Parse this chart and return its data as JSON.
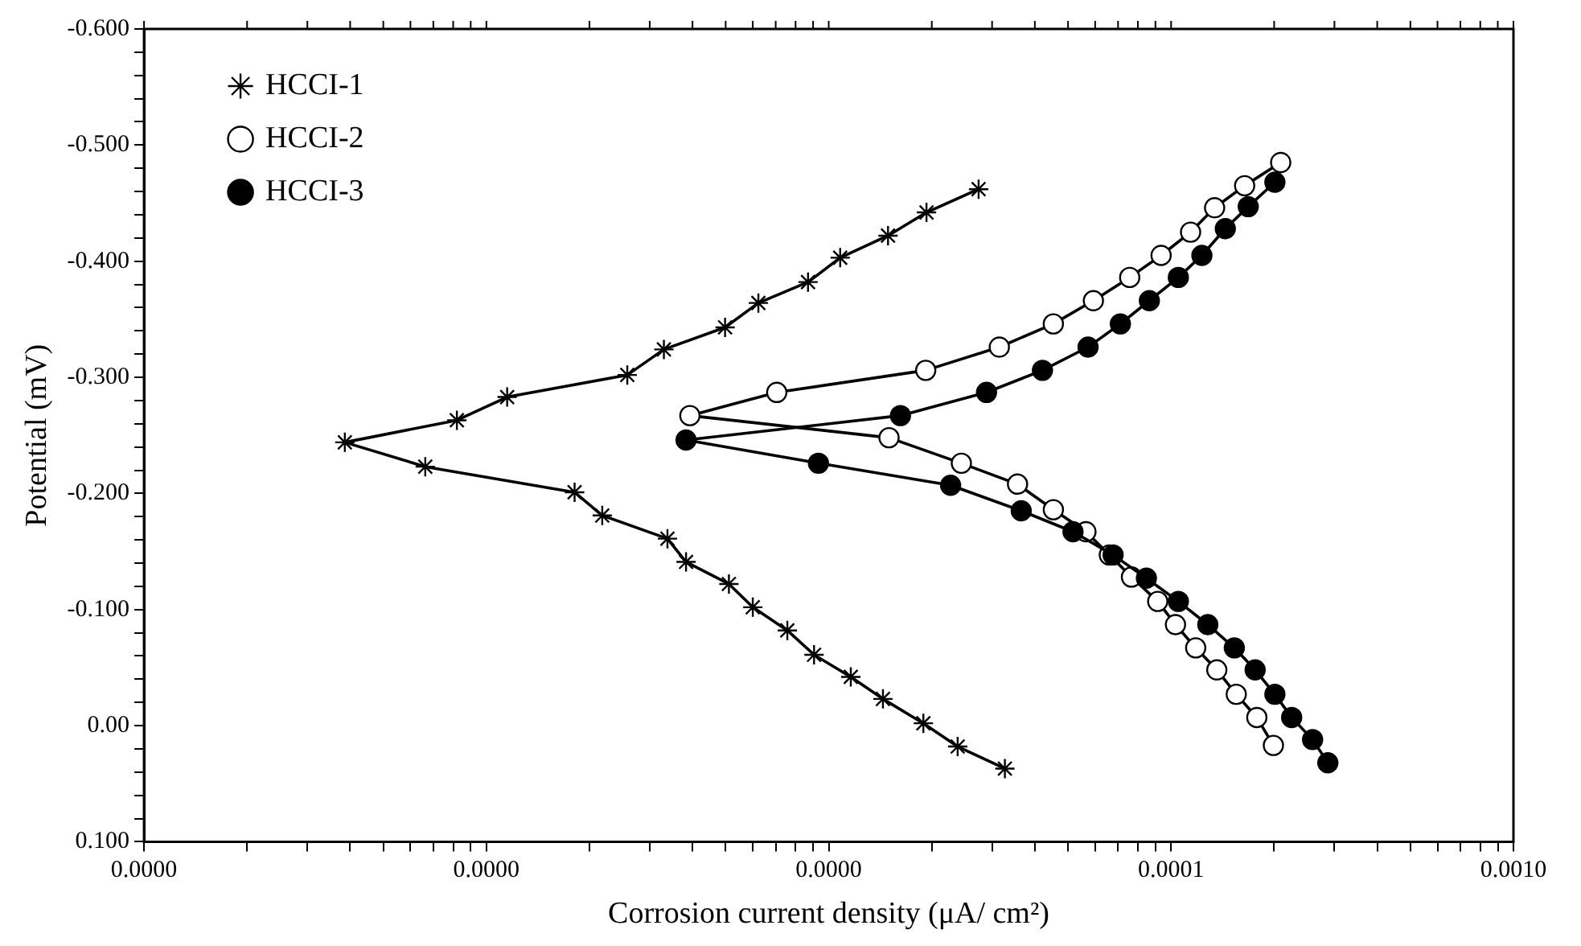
{
  "chart_data": {
    "type": "line",
    "xlabel": "Corrosion current density (μA/ cm²)",
    "ylabel": "Potential (mV)",
    "log": "x",
    "legend": "top left",
    "grid": false,
    "line_style": "solid",
    "xlim": [
      1e-07,
      0.001
    ],
    "xticks": [
      {
        "value": 1e-07,
        "label": "0.0000"
      },
      {
        "value": 2e-07,
        "label": null
      },
      {
        "value": 3e-07,
        "label": null
      },
      {
        "value": 4e-07,
        "label": null
      },
      {
        "value": 5e-07,
        "label": null
      },
      {
        "value": 6e-07,
        "label": null
      },
      {
        "value": 7e-07,
        "label": null
      },
      {
        "value": 8e-07,
        "label": null
      },
      {
        "value": 9e-07,
        "label": null
      },
      {
        "value": 1e-06,
        "label": "0.0000"
      },
      {
        "value": 2e-06,
        "label": null
      },
      {
        "value": 3e-06,
        "label": null
      },
      {
        "value": 4e-06,
        "label": null
      },
      {
        "value": 5e-06,
        "label": null
      },
      {
        "value": 6e-06,
        "label": null
      },
      {
        "value": 7e-06,
        "label": null
      },
      {
        "value": 8e-06,
        "label": null
      },
      {
        "value": 9e-06,
        "label": null
      },
      {
        "value": 1e-05,
        "label": "0.0000"
      },
      {
        "value": 2e-05,
        "label": null
      },
      {
        "value": 3e-05,
        "label": null
      },
      {
        "value": 4e-05,
        "label": null
      },
      {
        "value": 5e-05,
        "label": null
      },
      {
        "value": 6e-05,
        "label": null
      },
      {
        "value": 7e-05,
        "label": null
      },
      {
        "value": 8e-05,
        "label": null
      },
      {
        "value": 9e-05,
        "label": null
      },
      {
        "value": 0.0001,
        "label": "0.0001"
      },
      {
        "value": 0.0002,
        "label": null
      },
      {
        "value": 0.0003,
        "label": null
      },
      {
        "value": 0.0004,
        "label": null
      },
      {
        "value": 0.0005,
        "label": null
      },
      {
        "value": 0.0006,
        "label": null
      },
      {
        "value": 0.0007,
        "label": null
      },
      {
        "value": 0.0008,
        "label": null
      },
      {
        "value": 0.0009,
        "label": null
      },
      {
        "value": 0.001,
        "label": "0.0010"
      }
    ],
    "ylim": [
      0.1,
      -0.6
    ],
    "yticks": [
      {
        "value": -0.6,
        "label": "-0.600"
      },
      {
        "value": -0.58,
        "label": null
      },
      {
        "value": -0.56,
        "label": null
      },
      {
        "value": -0.54,
        "label": null
      },
      {
        "value": -0.52,
        "label": null
      },
      {
        "value": -0.5,
        "label": "-0.500"
      },
      {
        "value": -0.48,
        "label": null
      },
      {
        "value": -0.46,
        "label": null
      },
      {
        "value": -0.44,
        "label": null
      },
      {
        "value": -0.42,
        "label": null
      },
      {
        "value": -0.4,
        "label": "-0.400"
      },
      {
        "value": -0.38,
        "label": null
      },
      {
        "value": -0.36,
        "label": null
      },
      {
        "value": -0.34,
        "label": null
      },
      {
        "value": -0.32,
        "label": null
      },
      {
        "value": -0.3,
        "label": "-0.300"
      },
      {
        "value": -0.28,
        "label": null
      },
      {
        "value": -0.26,
        "label": null
      },
      {
        "value": -0.24,
        "label": null
      },
      {
        "value": -0.22,
        "label": null
      },
      {
        "value": -0.2,
        "label": "-0.200"
      },
      {
        "value": -0.18,
        "label": null
      },
      {
        "value": -0.16,
        "label": null
      },
      {
        "value": -0.14,
        "label": null
      },
      {
        "value": -0.12,
        "label": null
      },
      {
        "value": -0.1,
        "label": "-0.100"
      },
      {
        "value": -0.08,
        "label": null
      },
      {
        "value": -0.06,
        "label": null
      },
      {
        "value": -0.04,
        "label": null
      },
      {
        "value": -0.02,
        "label": null
      },
      {
        "value": 0,
        "label": "0.00"
      },
      {
        "value": 0.02,
        "label": null
      },
      {
        "value": 0.04,
        "label": null
      },
      {
        "value": 0.06,
        "label": null
      },
      {
        "value": 0.08,
        "label": null
      },
      {
        "value": 0.1,
        "label": "0.100"
      }
    ],
    "series": [
      {
        "name": "HCCI-1",
        "color": "#000000",
        "marker": "cross",
        "x": [
          2.74e-05,
          1.93e-05,
          1.49e-05,
          1.08e-05,
          8.7e-06,
          6.23e-06,
          4.98e-06,
          3.3e-06,
          2.58e-06,
          1.15e-06,
          8.2e-07,
          3.86e-07,
          6.63e-07,
          1.81e-06,
          2.18e-06,
          3.38e-06,
          3.83e-06,
          5.11e-06,
          6e-06,
          7.57e-06,
          9.06e-06,
          1.16e-05,
          1.44e-05,
          1.89e-05,
          2.38e-05,
          3.27e-05
        ],
        "values": [
          -0.462,
          -0.442,
          -0.422,
          -0.403,
          -0.382,
          -0.364,
          -0.343,
          -0.324,
          -0.302,
          -0.283,
          -0.263,
          -0.244,
          -0.223,
          -0.201,
          -0.181,
          -0.161,
          -0.141,
          -0.122,
          -0.102,
          -0.082,
          -0.061,
          -0.042,
          -0.023,
          -0.002,
          0.018,
          0.037
        ]
      },
      {
        "name": "HCCI-2",
        "color": "#000000",
        "marker": "circle",
        "colors": [
          "#ffffff",
          "#ffffff",
          "#ffffff",
          "#ffffff",
          "#ffffff",
          "#ffffff",
          "#ffffff",
          "#ffffff",
          "#ffffff",
          "#ffffff",
          "#ffffff",
          "#ffffff",
          "#ffffff",
          "#ffffff",
          "#ffffff",
          "#ffffff",
          "#ffffff",
          "#ffffff",
          "#ffffff",
          "#ffffff",
          "#ffffff",
          "#ffffff",
          "#ffffff",
          "#ffffff",
          "#ffffff",
          "#ffffff"
        ],
        "x": [
          0.000209,
          0.000164,
          0.000134,
          0.000114,
          9.35e-05,
          7.57e-05,
          5.93e-05,
          4.53e-05,
          3.15e-05,
          1.92e-05,
          7.05e-06,
          3.93e-06,
          1.5e-05,
          2.44e-05,
          3.56e-05,
          4.53e-05,
          5.64e-05,
          6.6e-05,
          7.66e-05,
          9.14e-05,
          0.000103,
          0.000118,
          0.000136,
          0.000155,
          0.000178,
          0.000199
        ],
        "values": [
          -0.485,
          -0.465,
          -0.446,
          -0.425,
          -0.405,
          -0.386,
          -0.366,
          -0.346,
          -0.326,
          -0.306,
          -0.287,
          -0.267,
          -0.248,
          -0.226,
          -0.208,
          -0.186,
          -0.167,
          -0.147,
          -0.128,
          -0.107,
          -0.087,
          -0.067,
          -0.048,
          -0.027,
          -0.007,
          0.017
        ]
      },
      {
        "name": "HCCI-3",
        "color": "#000000",
        "marker": "circle",
        "x": [
          0.000201,
          0.000168,
          0.000144,
          0.000123,
          0.000105,
          8.64e-05,
          7.11e-05,
          5.72e-05,
          4.21e-05,
          2.89e-05,
          1.62e-05,
          3.83e-06,
          9.33e-06,
          2.27e-05,
          3.65e-05,
          5.17e-05,
          6.77e-05,
          8.47e-05,
          0.000105,
          0.000128,
          0.000153,
          0.000176,
          0.000201,
          0.000225,
          0.000259,
          0.000287
        ],
        "values": [
          -0.468,
          -0.447,
          -0.428,
          -0.405,
          -0.386,
          -0.366,
          -0.346,
          -0.326,
          -0.306,
          -0.287,
          -0.267,
          -0.246,
          -0.226,
          -0.207,
          -0.185,
          -0.167,
          -0.147,
          -0.127,
          -0.107,
          -0.087,
          -0.067,
          -0.048,
          -0.027,
          -0.007,
          0.012,
          0.032
        ]
      }
    ]
  }
}
